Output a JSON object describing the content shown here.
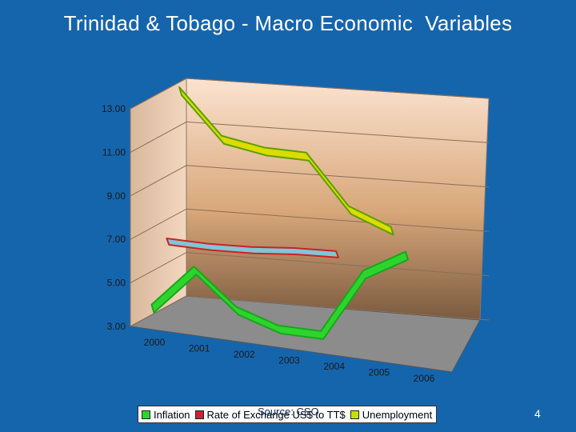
{
  "title": "Trinidad & Tobago - Macro Economic  Variables",
  "source": "Source: CSO",
  "page_number": "4",
  "colors": {
    "background": "#1565ad",
    "inflation": "#2dd42d",
    "exchange_rate": "#cc2222",
    "unemployment": "#d4e000"
  },
  "legend": [
    {
      "label": "Inflation",
      "color": "#2dd42d"
    },
    {
      "label": "Rate of Exchange US$ to TT$",
      "color": "#cc2233"
    },
    {
      "label": "Unemployment",
      "color": "#c8e000"
    }
  ],
  "chart_data": {
    "type": "line",
    "title": "",
    "categories": [
      "2000",
      "2001",
      "2002",
      "2003",
      "2004",
      "2005",
      "2006"
    ],
    "y_ticks": [
      "3.00",
      "5.00",
      "7.00",
      "9.00",
      "11.00",
      "13.00"
    ],
    "ylim": [
      3,
      13
    ],
    "series": [
      {
        "name": "Inflation",
        "values": [
          3.6,
          5.5,
          3.8,
          3.1,
          3.0,
          5.9,
          6.9
        ]
      },
      {
        "name": "Rate of Exchange US$ to TT$",
        "values": [
          6.3,
          6.2,
          6.2,
          6.3,
          6.3,
          null,
          null
        ]
      },
      {
        "name": "Unemployment",
        "values": [
          12.9,
          10.8,
          10.4,
          10.3,
          8.0,
          7.2,
          null
        ]
      }
    ],
    "grid": true,
    "legend_position": "bottom"
  }
}
